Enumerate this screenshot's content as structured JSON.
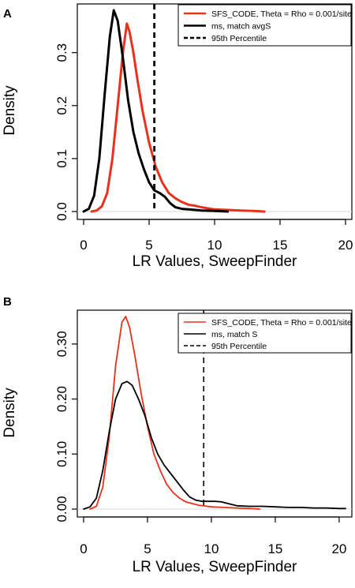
{
  "chart_data": [
    {
      "panel": "A",
      "type": "line",
      "xlabel": "LR Values, SweepFinder",
      "ylabel": "Density",
      "xlim": [
        0,
        20
      ],
      "ylim": [
        0,
        0.38
      ],
      "x_ticks": [
        0,
        5,
        10,
        15,
        20
      ],
      "y_ticks": [
        0.0,
        0.1,
        0.2,
        0.3
      ],
      "y_tick_labels": [
        "0.0",
        "0.1",
        "0.2",
        "0.3"
      ],
      "grid": false,
      "legend_position": "top-right",
      "legend": [
        {
          "label": "SFS_CODE, Theta = Rho = 0.001/site",
          "color": "#e8321e",
          "style": "solid",
          "width": 2.6
        },
        {
          "label": "ms, match avgS",
          "color": "#000000",
          "style": "solid",
          "width": 2.6
        },
        {
          "label": "95th Percentile",
          "color": "#000000",
          "style": "dashed",
          "width": 2.6
        }
      ],
      "vline": {
        "x": 5.4,
        "color": "#000000",
        "style": "dashed"
      },
      "series": [
        {
          "name": "SFS_CODE, Theta = Rho = 0.001/site",
          "color": "#e8321e",
          "points": [
            [
              0.6,
              0.0
            ],
            [
              1.0,
              0.002
            ],
            [
              1.4,
              0.01
            ],
            [
              1.8,
              0.035
            ],
            [
              2.2,
              0.1
            ],
            [
              2.6,
              0.2
            ],
            [
              3.0,
              0.3
            ],
            [
              3.3,
              0.355
            ],
            [
              3.5,
              0.34
            ],
            [
              3.8,
              0.3
            ],
            [
              4.1,
              0.25
            ],
            [
              4.5,
              0.19
            ],
            [
              5.0,
              0.13
            ],
            [
              5.5,
              0.085
            ],
            [
              6.0,
              0.055
            ],
            [
              6.5,
              0.035
            ],
            [
              7.0,
              0.025
            ],
            [
              7.5,
              0.018
            ],
            [
              8.0,
              0.013
            ],
            [
              8.5,
              0.011
            ],
            [
              9.0,
              0.008
            ],
            [
              9.5,
              0.006
            ],
            [
              10.0,
              0.004
            ],
            [
              11.0,
              0.003
            ],
            [
              12.0,
              0.002
            ],
            [
              13.0,
              0.001
            ],
            [
              13.8,
              0.0
            ]
          ]
        },
        {
          "name": "ms, match avgS",
          "color": "#000000",
          "points": [
            [
              0.0,
              0.0
            ],
            [
              0.4,
              0.005
            ],
            [
              0.8,
              0.03
            ],
            [
              1.2,
              0.1
            ],
            [
              1.6,
              0.22
            ],
            [
              2.0,
              0.33
            ],
            [
              2.3,
              0.38
            ],
            [
              2.6,
              0.36
            ],
            [
              3.0,
              0.29
            ],
            [
              3.4,
              0.21
            ],
            [
              3.8,
              0.15
            ],
            [
              4.2,
              0.11
            ],
            [
              4.6,
              0.08
            ],
            [
              5.0,
              0.055
            ],
            [
              5.4,
              0.04
            ],
            [
              5.8,
              0.035
            ],
            [
              6.2,
              0.028
            ],
            [
              6.6,
              0.016
            ],
            [
              7.0,
              0.008
            ],
            [
              7.5,
              0.005
            ],
            [
              8.0,
              0.004
            ],
            [
              9.0,
              0.002
            ],
            [
              10.0,
              0.001
            ],
            [
              11.0,
              0.0
            ]
          ]
        }
      ]
    },
    {
      "panel": "B",
      "type": "line",
      "xlabel": "LR Values, SweepFinder",
      "ylabel": "Density",
      "xlim": [
        0,
        20.5
      ],
      "ylim": [
        0,
        0.35
      ],
      "x_ticks": [
        0,
        5,
        10,
        15,
        20
      ],
      "y_ticks": [
        0.0,
        0.1,
        0.2,
        0.3
      ],
      "y_tick_labels": [
        "0.00",
        "0.10",
        "0.20",
        "0.30"
      ],
      "grid": false,
      "legend_position": "top-right",
      "legend": [
        {
          "label": "SFS_CODE, Theta = Rho = 0.001/site",
          "color": "#e8321e",
          "style": "solid",
          "width": 1.4
        },
        {
          "label": "ms, match S",
          "color": "#000000",
          "style": "solid",
          "width": 1.4
        },
        {
          "label": "95th Percentile",
          "color": "#000000",
          "style": "dashed",
          "width": 1.4
        }
      ],
      "vline": {
        "x": 9.4,
        "color": "#000000",
        "style": "dashed"
      },
      "series": [
        {
          "name": "SFS_CODE, Theta = Rho = 0.001/site",
          "color": "#e8321e",
          "points": [
            [
              0.5,
              0.0
            ],
            [
              1.0,
              0.005
            ],
            [
              1.5,
              0.04
            ],
            [
              2.0,
              0.13
            ],
            [
              2.5,
              0.26
            ],
            [
              3.0,
              0.34
            ],
            [
              3.3,
              0.35
            ],
            [
              3.6,
              0.33
            ],
            [
              4.0,
              0.28
            ],
            [
              4.5,
              0.21
            ],
            [
              5.0,
              0.15
            ],
            [
              5.5,
              0.1
            ],
            [
              6.0,
              0.07
            ],
            [
              6.5,
              0.045
            ],
            [
              7.0,
              0.03
            ],
            [
              7.5,
              0.02
            ],
            [
              8.0,
              0.013
            ],
            [
              9.0,
              0.007
            ],
            [
              10.0,
              0.004
            ],
            [
              11.0,
              0.003
            ],
            [
              12.0,
              0.002
            ],
            [
              13.0,
              0.001
            ],
            [
              13.8,
              0.0
            ]
          ]
        },
        {
          "name": "ms, match S",
          "color": "#000000",
          "points": [
            [
              0.0,
              0.0
            ],
            [
              0.5,
              0.004
            ],
            [
              1.0,
              0.02
            ],
            [
              1.5,
              0.07
            ],
            [
              2.0,
              0.14
            ],
            [
              2.5,
              0.2
            ],
            [
              3.0,
              0.228
            ],
            [
              3.4,
              0.232
            ],
            [
              3.8,
              0.225
            ],
            [
              4.3,
              0.2
            ],
            [
              4.8,
              0.17
            ],
            [
              5.3,
              0.13
            ],
            [
              5.8,
              0.1
            ],
            [
              6.3,
              0.08
            ],
            [
              6.8,
              0.065
            ],
            [
              7.3,
              0.05
            ],
            [
              7.8,
              0.035
            ],
            [
              8.3,
              0.022
            ],
            [
              8.8,
              0.016
            ],
            [
              9.3,
              0.014
            ],
            [
              9.8,
              0.014
            ],
            [
              10.3,
              0.014
            ],
            [
              10.8,
              0.013
            ],
            [
              11.3,
              0.01
            ],
            [
              12.0,
              0.006
            ],
            [
              13.0,
              0.005
            ],
            [
              14.0,
              0.005
            ],
            [
              15.0,
              0.004
            ],
            [
              16.0,
              0.003
            ],
            [
              17.0,
              0.003
            ],
            [
              18.0,
              0.002
            ],
            [
              19.0,
              0.002
            ],
            [
              20.0,
              0.001
            ],
            [
              20.5,
              0.001
            ]
          ]
        }
      ]
    }
  ]
}
